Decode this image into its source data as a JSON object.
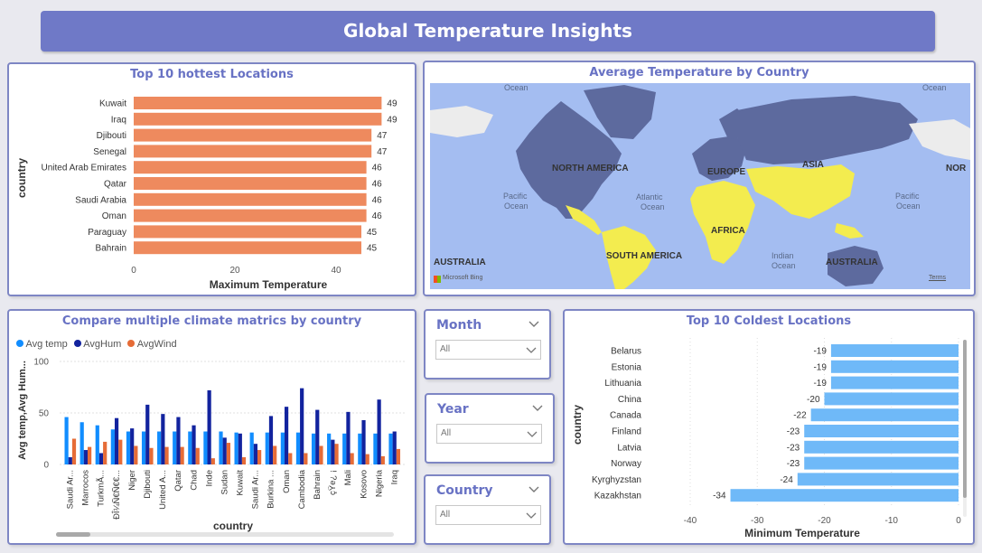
{
  "header": {
    "title": "Global Temperature Insights"
  },
  "hottest": {
    "title": "Top 10 hottest Locations",
    "chart_data": {
      "type": "bar",
      "orientation": "horizontal",
      "categories": [
        "Kuwait",
        "Iraq",
        "Djibouti",
        "Senegal",
        "United Arab Emirates",
        "Qatar",
        "Saudi Arabia",
        "Oman",
        "Paraguay",
        "Bahrain"
      ],
      "values": [
        49,
        49,
        47,
        47,
        46,
        46,
        46,
        46,
        45,
        45
      ],
      "xlabel": "Maximum Temperature",
      "ylabel": "country",
      "xticks": [
        "0",
        "20",
        "40"
      ],
      "xlim": [
        0,
        50
      ],
      "color": "#ee8a5e",
      "grid": false
    }
  },
  "map": {
    "title": "Average Temperature by Country",
    "labels": {
      "na": "NORTH AMERICA",
      "eu": "EUROPE",
      "asia": "ASIA",
      "af": "AFRICA",
      "sa": "SOUTH AMERICA",
      "au_left": "AUSTRALIA",
      "au_right": "AUSTRALIA",
      "nor": "NOR",
      "atl1": "Atlantic",
      "atl2": "Ocean",
      "pac1a": "Pacific",
      "pac1b": "Ocean",
      "pac2a": "Pacific",
      "pac2b": "Ocean",
      "ind1": "Indian",
      "ind2": "Ocean",
      "ocean_tl": "Ocean",
      "ocean_tr": "Ocean"
    },
    "attribution": "Microsoft Bing",
    "terms": "Terms",
    "colors": {
      "water": "#a4bdf1",
      "cold": "#5d6a9e",
      "hot": "#f3ec4f",
      "neutral": "#ececec"
    }
  },
  "climate": {
    "title": "Compare multiple climate matrics by country",
    "chart_data": {
      "type": "bar",
      "grouped": true,
      "categories": [
        "Saudi Ar...",
        "Marrocos",
        "TurkmÃ...",
        "ĐÎ¼Ñ€Ñ€€...",
        "Niger",
        "Djibouti",
        "United A...",
        "Qatar",
        "Chad",
        "Inde",
        "Sudan",
        "Kuwait",
        "Saudi Ar...",
        "Burkina ...",
        "Oman",
        "Cambodia",
        "Bahrain",
        "çŸ­e¿ ¡",
        "Mali",
        "Kosovo",
        "Nigeria",
        "Iraq"
      ],
      "series": [
        {
          "name": "Avg temp",
          "color": "#118dff",
          "values": [
            46,
            41,
            38,
            34,
            32,
            32,
            32,
            32,
            32,
            32,
            32,
            31,
            31,
            31,
            31,
            31,
            30,
            30,
            30,
            30,
            30,
            30
          ]
        },
        {
          "name": "AvgHum",
          "color": "#12239e",
          "values": [
            7,
            14,
            11,
            45,
            35,
            58,
            49,
            46,
            38,
            72,
            26,
            30,
            20,
            47,
            56,
            74,
            53,
            24,
            51,
            43,
            63,
            32
          ]
        },
        {
          "name": "AvgWind",
          "color": "#e66c37",
          "values": [
            25,
            17,
            22,
            24,
            18,
            16,
            17,
            17,
            16,
            6,
            21,
            7,
            14,
            18,
            11,
            11,
            18,
            20,
            11,
            10,
            8,
            15
          ]
        }
      ],
      "ylabel": "Avg temp,Avg Hum...",
      "xlabel": "country",
      "yticks": [
        "0",
        "50",
        "100"
      ],
      "ylim": [
        0,
        100
      ],
      "legend": "top-left",
      "grid": true
    }
  },
  "slicers": {
    "month": {
      "title": "Month",
      "value": "All"
    },
    "year": {
      "title": "Year",
      "value": "All"
    },
    "country": {
      "title": "Country",
      "value": "All"
    }
  },
  "coldest": {
    "title": "Top 10 Coldest Locations",
    "chart_data": {
      "type": "bar",
      "orientation": "horizontal",
      "categories": [
        "Belarus",
        "Estonia",
        "Lithuania",
        "China",
        "Canada",
        "Finland",
        "Latvia",
        "Norway",
        "Kyrghyzstan",
        "Kazakhstan"
      ],
      "values": [
        -19,
        -19,
        -19,
        -20,
        -22,
        -23,
        -23,
        -23,
        -24,
        -34
      ],
      "xlabel": "Minimum Temperature",
      "ylabel": "country",
      "xticks": [
        "-40",
        "-30",
        "-20",
        "-10",
        "0"
      ],
      "xlim": [
        -40,
        0
      ],
      "color": "#6fb9f8",
      "grid": true
    }
  }
}
